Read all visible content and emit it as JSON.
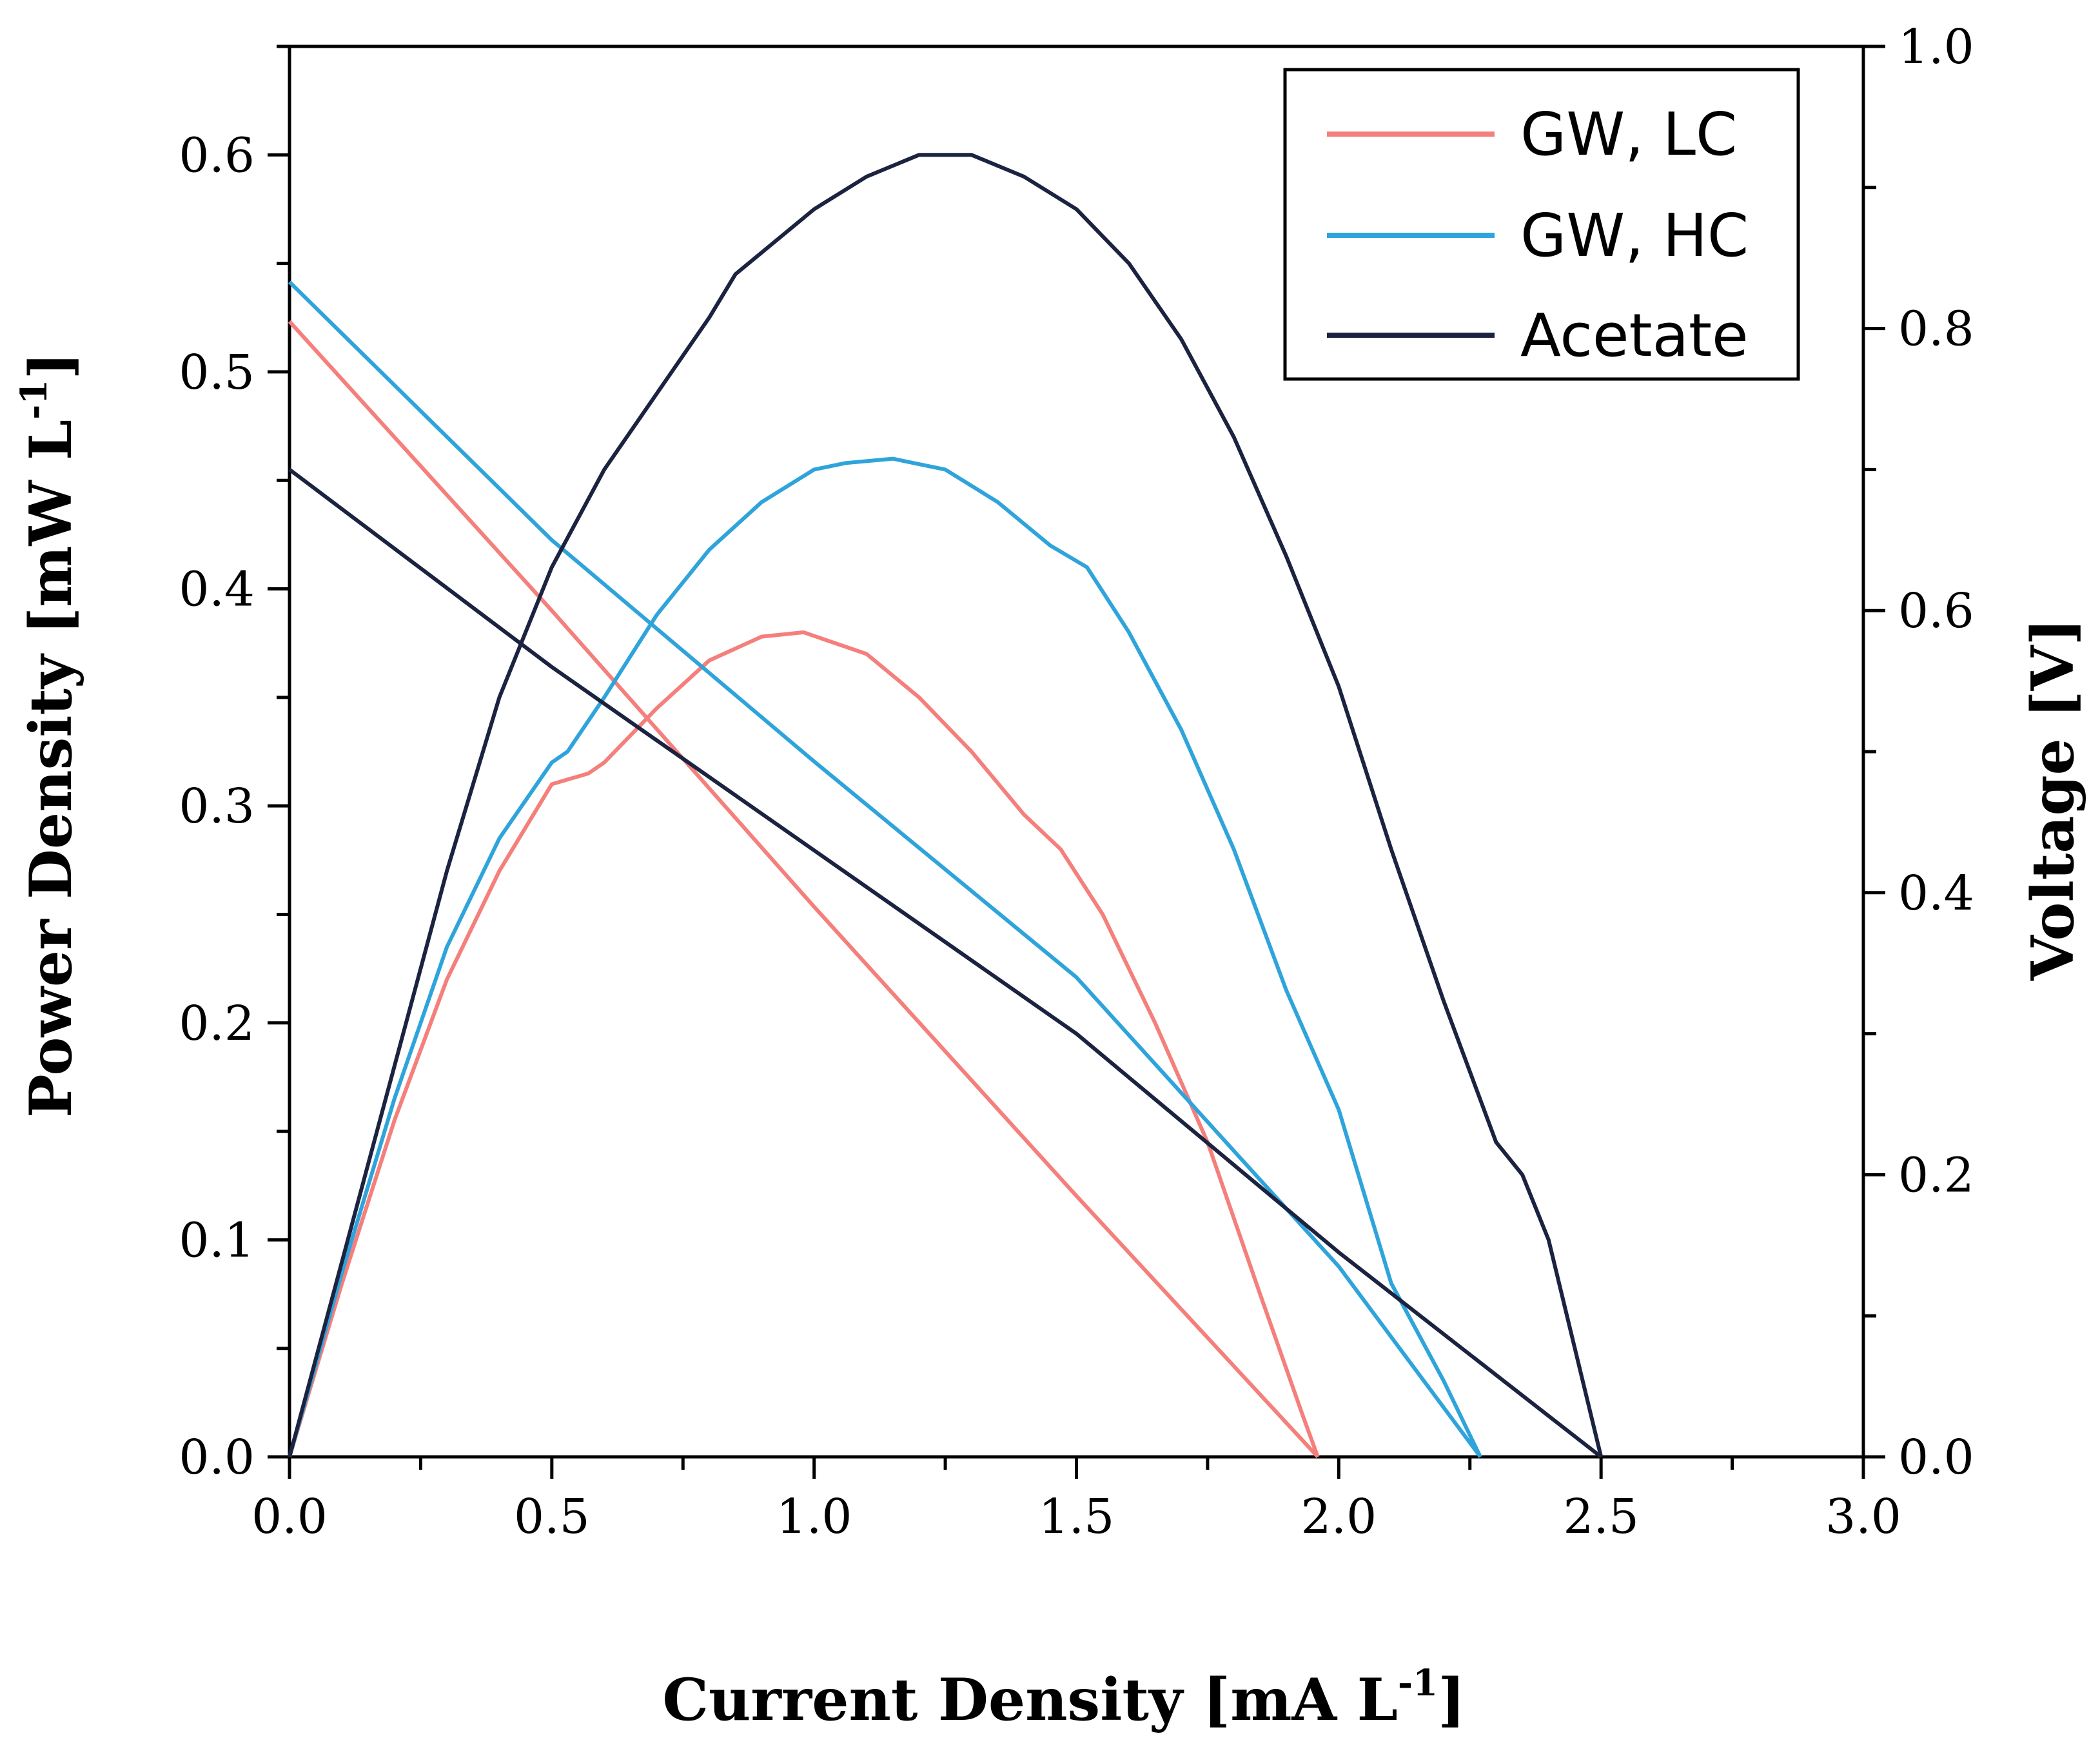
{
  "chart_data": {
    "type": "line",
    "x_axis": {
      "label": "Current Density [mA L",
      "label_unit_exp": "-1",
      "label_close": "]",
      "range": [
        0,
        3
      ],
      "ticks": [
        "0.0",
        "0.5",
        "1.0",
        "1.5",
        "2.0",
        "2.5",
        "3.0"
      ]
    },
    "y_left": {
      "label": "Power Density [mW L",
      "label_unit_exp": "-1",
      "label_close": "]",
      "range": [
        0,
        0.65
      ],
      "ticks": [
        "0.0",
        "0.1",
        "0.2",
        "0.3",
        "0.4",
        "0.5",
        "0.6"
      ]
    },
    "y_right": {
      "label": "Voltage [V]",
      "range": [
        0,
        1.0
      ],
      "ticks": [
        "0.0",
        "0.2",
        "0.4",
        "0.6",
        "0.8",
        "1.0"
      ]
    },
    "legend": {
      "position": "top-right",
      "entries": [
        "GW, LC",
        "GW, HC",
        "Acetate"
      ]
    },
    "series": [
      {
        "name": "GW, LC",
        "color": "#f47f7b",
        "power": {
          "x": [
            0,
            0.1,
            0.2,
            0.3,
            0.4,
            0.5,
            0.57,
            0.6,
            0.7,
            0.8,
            0.9,
            0.98,
            1.1,
            1.2,
            1.3,
            1.4,
            1.47,
            1.55,
            1.65,
            1.75,
            1.85,
            1.93,
            1.96
          ],
          "y": [
            0,
            0.08,
            0.155,
            0.22,
            0.27,
            0.31,
            0.315,
            0.32,
            0.345,
            0.367,
            0.378,
            0.38,
            0.37,
            0.35,
            0.325,
            0.296,
            0.28,
            0.25,
            0.2,
            0.145,
            0.075,
            0.02,
            0
          ]
        },
        "voltage": {
          "x": [
            0,
            0.5,
            1.0,
            1.5,
            1.96
          ],
          "y": [
            0.805,
            0.6,
            0.39,
            0.185,
            0
          ]
        }
      },
      {
        "name": "GW, HC",
        "color": "#2fa4db",
        "power": {
          "x": [
            0,
            0.1,
            0.2,
            0.3,
            0.4,
            0.5,
            0.53,
            0.6,
            0.7,
            0.8,
            0.9,
            1.0,
            1.06,
            1.15,
            1.25,
            1.35,
            1.45,
            1.52,
            1.6,
            1.7,
            1.8,
            1.9,
            2.0,
            2.1,
            2.2,
            2.27
          ],
          "y": [
            0,
            0.085,
            0.165,
            0.235,
            0.285,
            0.32,
            0.325,
            0.35,
            0.388,
            0.418,
            0.44,
            0.455,
            0.458,
            0.46,
            0.455,
            0.44,
            0.42,
            0.41,
            0.38,
            0.335,
            0.28,
            0.215,
            0.16,
            0.08,
            0.035,
            0
          ]
        },
        "voltage": {
          "x": [
            0,
            0.5,
            1.0,
            1.5,
            2.0,
            2.27
          ],
          "y": [
            0.833,
            0.65,
            0.493,
            0.34,
            0.135,
            0
          ]
        }
      },
      {
        "name": "Acetate",
        "color": "#1b2340",
        "power": {
          "x": [
            0,
            0.1,
            0.2,
            0.3,
            0.4,
            0.5,
            0.6,
            0.7,
            0.8,
            0.85,
            0.9,
            1.0,
            1.1,
            1.2,
            1.3,
            1.4,
            1.5,
            1.6,
            1.7,
            1.8,
            1.9,
            2.0,
            2.1,
            2.2,
            2.3,
            2.35,
            2.4,
            2.45,
            2.5
          ],
          "y": [
            0,
            0.09,
            0.18,
            0.27,
            0.35,
            0.41,
            0.455,
            0.49,
            0.525,
            0.545,
            0.555,
            0.575,
            0.59,
            0.6,
            0.6,
            0.59,
            0.575,
            0.55,
            0.515,
            0.47,
            0.415,
            0.355,
            0.28,
            0.21,
            0.145,
            0.13,
            0.1,
            0.05,
            0
          ]
        },
        "voltage": {
          "x": [
            0,
            0.5,
            1.0,
            1.5,
            2.0,
            2.5
          ],
          "y": [
            0.7,
            0.56,
            0.43,
            0.3,
            0.145,
            0
          ]
        }
      }
    ]
  }
}
